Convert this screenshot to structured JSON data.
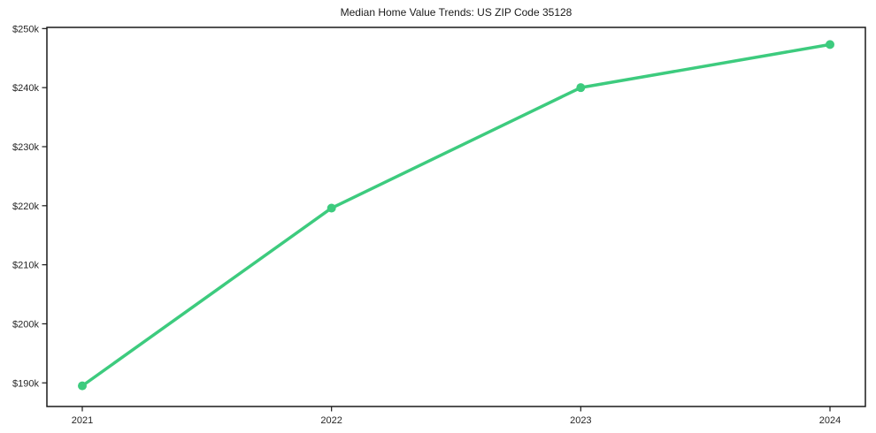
{
  "chart_data": {
    "type": "line",
    "title": "Median Home Value Trends: US ZIP Code 35128",
    "xlabel": "",
    "ylabel": "",
    "x_categories": [
      "2021",
      "2022",
      "2023",
      "2024"
    ],
    "series": [
      {
        "name": "Median Home Value",
        "values": [
          189500,
          219600,
          240000,
          247300
        ],
        "color": "#3dcb7e",
        "marker": "circle"
      }
    ],
    "yticks": [
      {
        "value": 190000,
        "label": "$190k"
      },
      {
        "value": 200000,
        "label": "$200k"
      },
      {
        "value": 210000,
        "label": "$210k"
      },
      {
        "value": 220000,
        "label": "$220k"
      },
      {
        "value": 230000,
        "label": "$230k"
      },
      {
        "value": 240000,
        "label": "$240k"
      },
      {
        "value": 250000,
        "label": "$250k"
      }
    ],
    "ylim": [
      186000,
      250200
    ],
    "grid": false,
    "legend_position": "none",
    "axis_color": "#1a1a1a",
    "text_color": "#262626",
    "background_color": "#ffffff"
  }
}
